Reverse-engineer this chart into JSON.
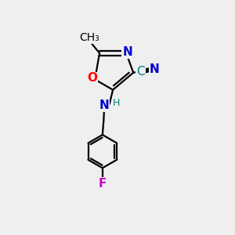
{
  "bg_color": "#efefef",
  "bond_color": "#000000",
  "bond_lw": 1.6,
  "atom_colors": {
    "O": "#ff0000",
    "N": "#0000cd",
    "F": "#cc00cc",
    "C": "#000000",
    "CN_C": "#008080",
    "CN_N": "#0000cd",
    "H": "#008080"
  },
  "fs": 11,
  "fs_small": 9,
  "fs_methyl": 10
}
